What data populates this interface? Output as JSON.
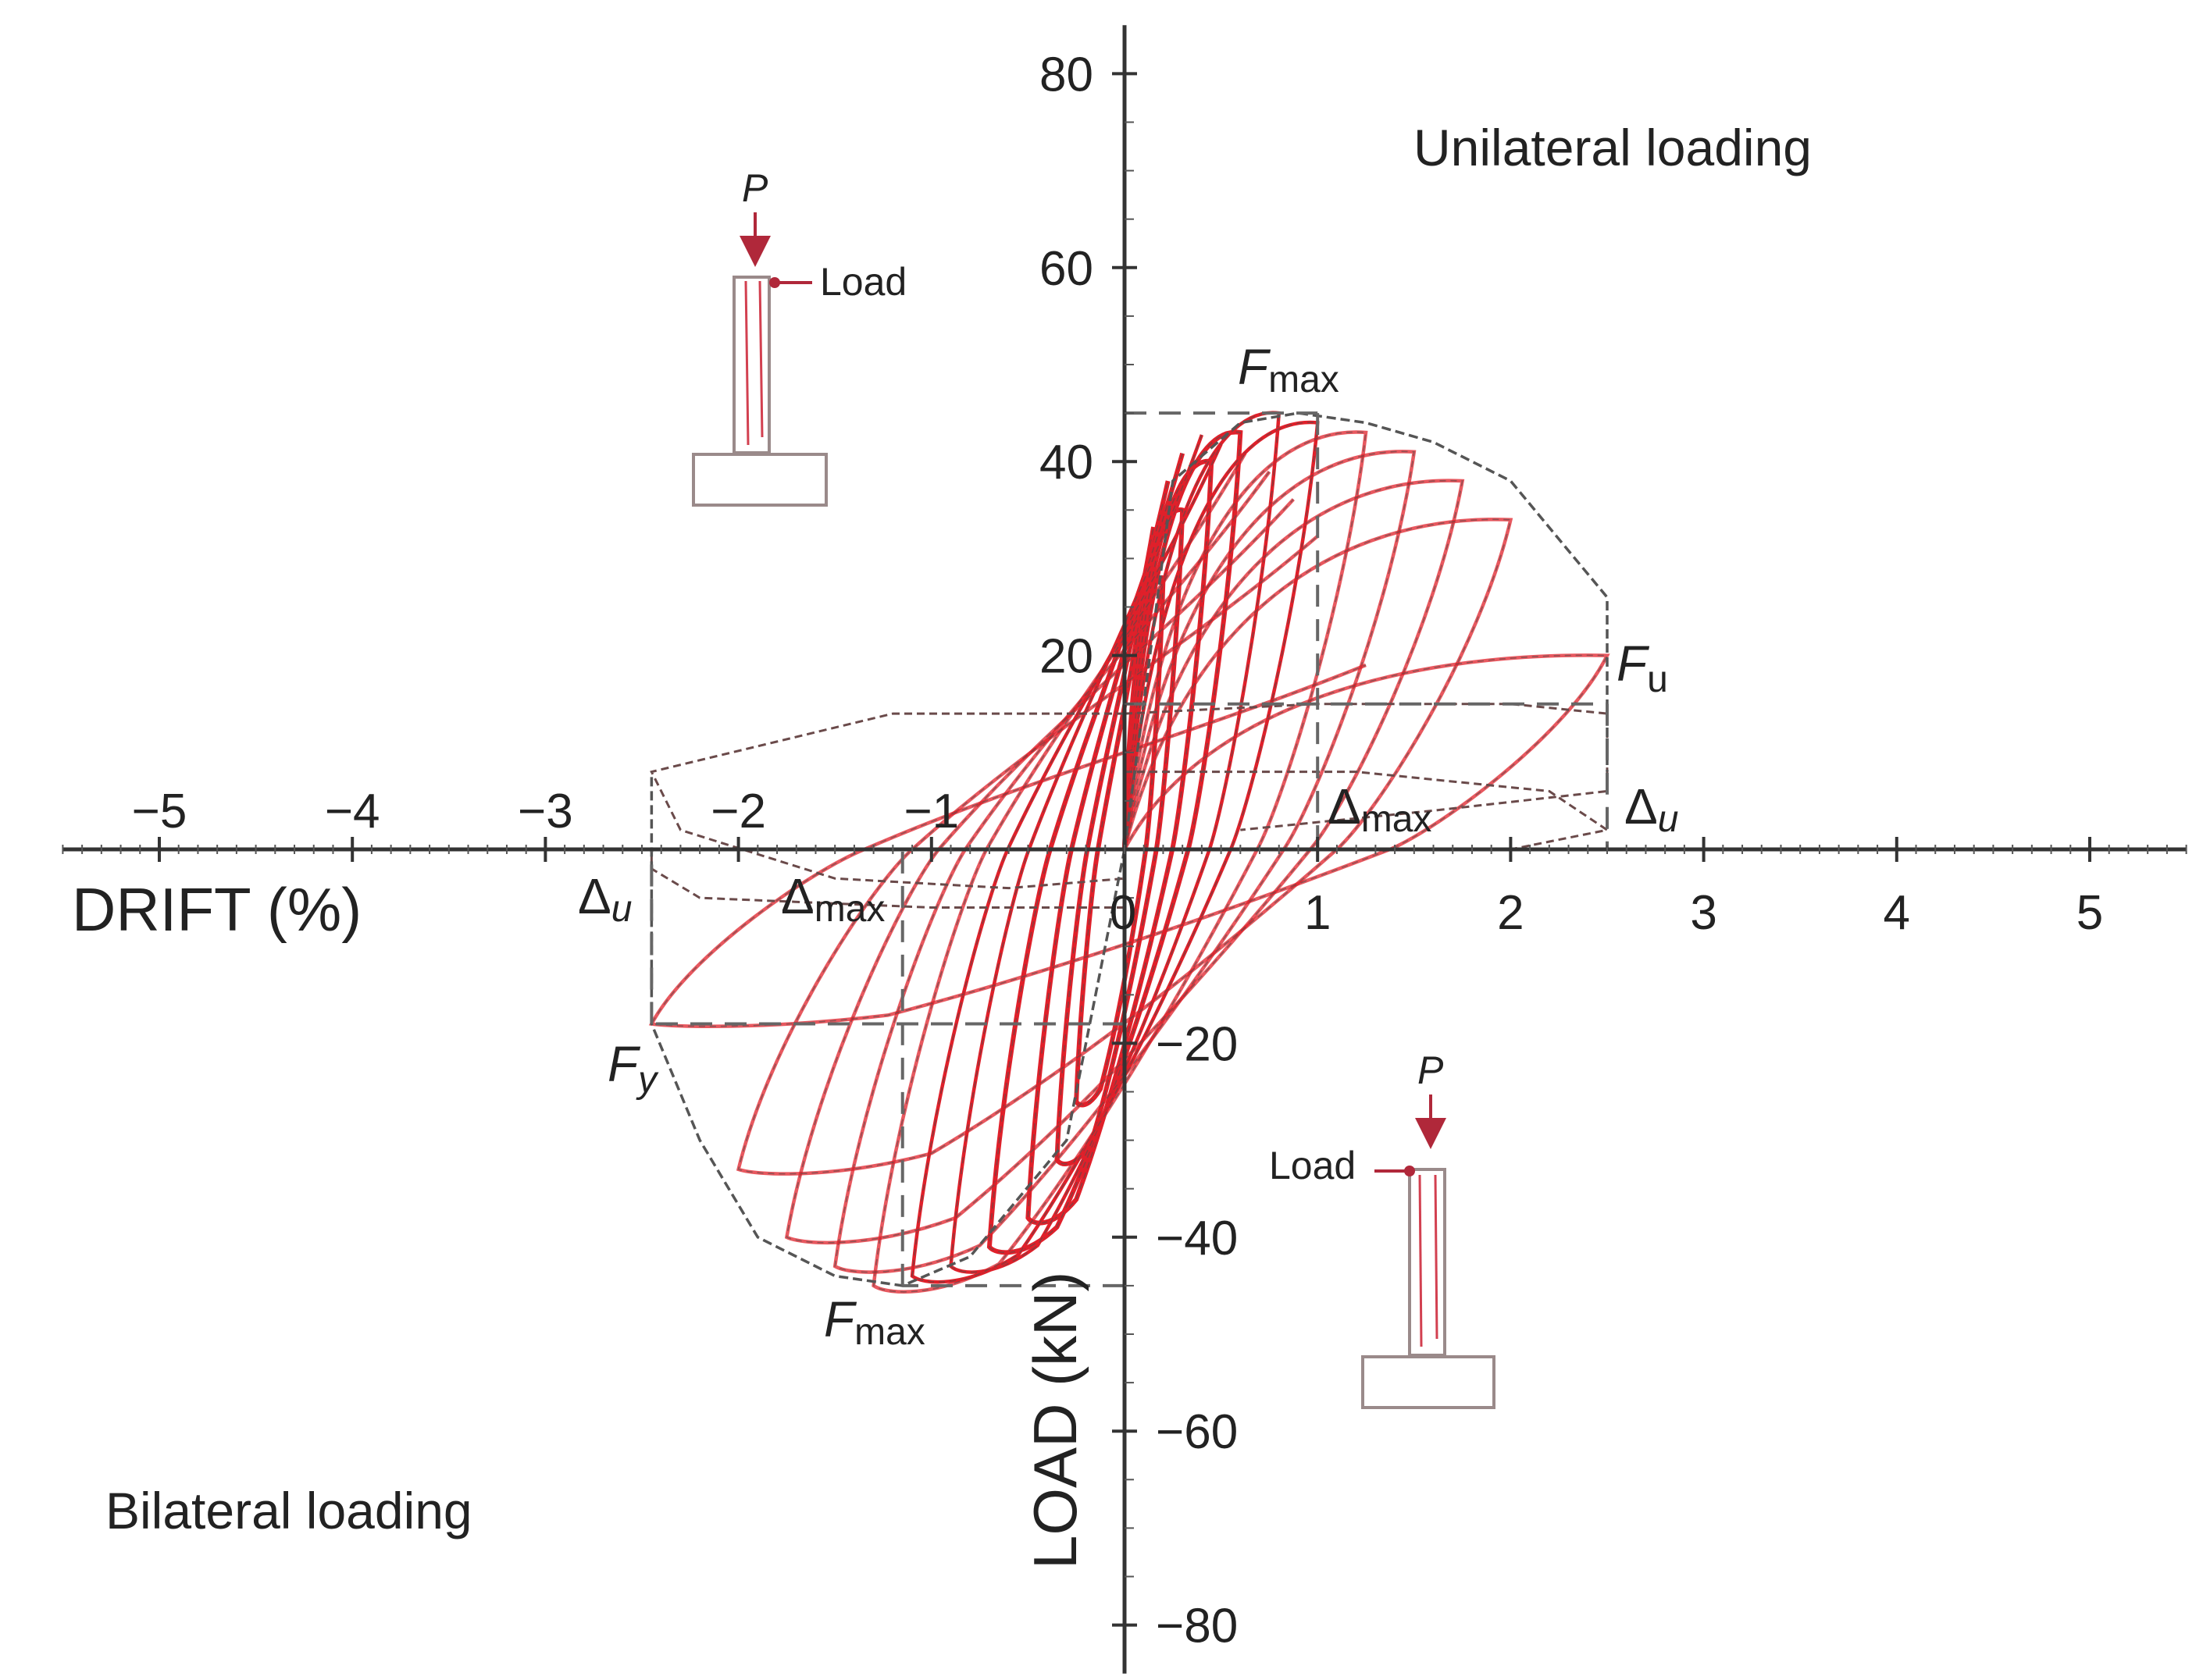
{
  "chart_data": {
    "type": "line",
    "title": "",
    "xlabel": "DRIFT (%)",
    "ylabel": "LOAD (kN)",
    "xlim": [
      -5.5,
      5.5
    ],
    "ylim": [
      -85,
      85
    ],
    "x_ticks": [
      -5,
      -4,
      -3,
      -2,
      -1,
      1,
      2,
      3,
      4,
      5
    ],
    "x_tick_labels": [
      "−5",
      "−4",
      "−3",
      "−2",
      "−1",
      "1",
      "2",
      "3",
      "4",
      "5"
    ],
    "y_ticks": [
      80,
      60,
      40,
      20,
      -20,
      -40,
      -60,
      -80
    ],
    "y_tick_labels": [
      "80",
      "60",
      "40",
      "20",
      "−20",
      "−40",
      "−60",
      "−80"
    ],
    "origin_label": "0",
    "grid": false,
    "colors": {
      "hysteresis": "#e0202a",
      "envelope": "#555555",
      "reference_lines": "#666666"
    },
    "region_labels": {
      "upper_right": "Unilateral loading",
      "lower_left": "Bilateral loading"
    },
    "annotations": {
      "fmax_pos": {
        "main": "F",
        "sub": "max",
        "x": 0.9,
        "y": 45
      },
      "fu": {
        "main": "F",
        "sub": "u",
        "x": 2.5,
        "y": 15
      },
      "dmax_pos": {
        "main": "Δ",
        "sub": "max",
        "x": 1.0,
        "y": 0
      },
      "du_pos": {
        "main": "Δ",
        "sub": "u",
        "x": 2.5,
        "y": 0
      },
      "fmax_neg": {
        "main": "F",
        "sub": "max",
        "x": -1.15,
        "y": -45
      },
      "fy": {
        "main": "F",
        "sub": "y",
        "x": -2.45,
        "y": -18
      },
      "dmax_neg": {
        "main": "Δ",
        "sub": "max",
        "x": -1.15,
        "y": 0
      },
      "du_neg": {
        "main": "Δ",
        "sub": "u",
        "x": -2.45,
        "y": 0
      }
    },
    "reference_lines": {
      "positive": {
        "fmax": 45,
        "dmax": 1.0,
        "fu": 15,
        "du": 2.5
      },
      "negative": {
        "fmax": -45,
        "dmax": -1.15,
        "fy": -18,
        "du": -2.45
      }
    },
    "envelopes": [
      {
        "name": "",
        "points": [
          [
            0,
            0
          ],
          [
            0.25,
            38
          ],
          [
            0.6,
            44
          ],
          [
            0.9,
            45
          ],
          [
            1.25,
            44
          ],
          [
            1.6,
            42
          ],
          [
            2.0,
            38
          ],
          [
            2.5,
            26
          ],
          [
            2.5,
            8
          ]
        ]
      },
      {
        "name": "",
        "points": [
          [
            0,
            0
          ],
          [
            -0.3,
            -30
          ],
          [
            -0.8,
            -42
          ],
          [
            -1.15,
            -45
          ],
          [
            -1.5,
            -44
          ],
          [
            -1.9,
            -40
          ],
          [
            -2.2,
            -30
          ],
          [
            -2.45,
            -18
          ],
          [
            -2.45,
            0
          ],
          [
            -2.45,
            8
          ]
        ]
      }
    ],
    "loops": [
      {
        "dpos": 0.2,
        "fpos": 28,
        "dneg": -0.25,
        "fneg": -26
      },
      {
        "dpos": 0.3,
        "fpos": 35,
        "dneg": -0.35,
        "fneg": -32
      },
      {
        "dpos": 0.45,
        "fpos": 40,
        "dneg": -0.5,
        "fneg": -38
      },
      {
        "dpos": 0.6,
        "fpos": 43,
        "dneg": -0.7,
        "fneg": -41
      },
      {
        "dpos": 0.8,
        "fpos": 45,
        "dneg": -0.9,
        "fneg": -43
      },
      {
        "dpos": 1.0,
        "fpos": 44,
        "dneg": -1.1,
        "fneg": -44
      },
      {
        "dpos": 1.25,
        "fpos": 43,
        "dneg": -1.3,
        "fneg": -45
      },
      {
        "dpos": 1.5,
        "fpos": 41,
        "dneg": -1.5,
        "fneg": -43
      },
      {
        "dpos": 1.75,
        "fpos": 38,
        "dneg": -1.75,
        "fneg": -40
      },
      {
        "dpos": 2.0,
        "fpos": 34,
        "dneg": -2.0,
        "fneg": -33
      },
      {
        "dpos": 2.5,
        "fpos": 20,
        "dneg": -2.45,
        "fneg": -18
      }
    ],
    "insets": [
      {
        "corner": "upper-left",
        "p_label": "P",
        "load_label": "Load"
      },
      {
        "corner": "lower-right",
        "p_label": "P",
        "load_label": "Load"
      }
    ]
  }
}
